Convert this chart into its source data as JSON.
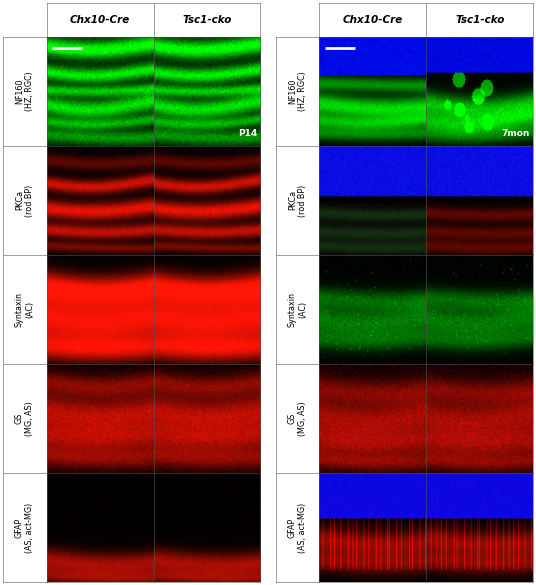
{
  "col_headers_left": [
    "Chx10-Cre",
    "Tsc1-cko"
  ],
  "col_headers_right": [
    "Chx10-Cre",
    "Tsc1-cko"
  ],
  "row_labels": [
    "NF160\n(HZ, RGC)",
    "PKCa\n(rod BP)",
    "Syntaxin\n(AC)",
    "GS\n(MG, AS)",
    "GFAP\n(AS, act-MG)"
  ],
  "time_label_left": "P14",
  "time_label_right": "7mon",
  "figure_bg": "#ffffff",
  "figsize": [
    5.36,
    5.85
  ],
  "dpi": 100
}
